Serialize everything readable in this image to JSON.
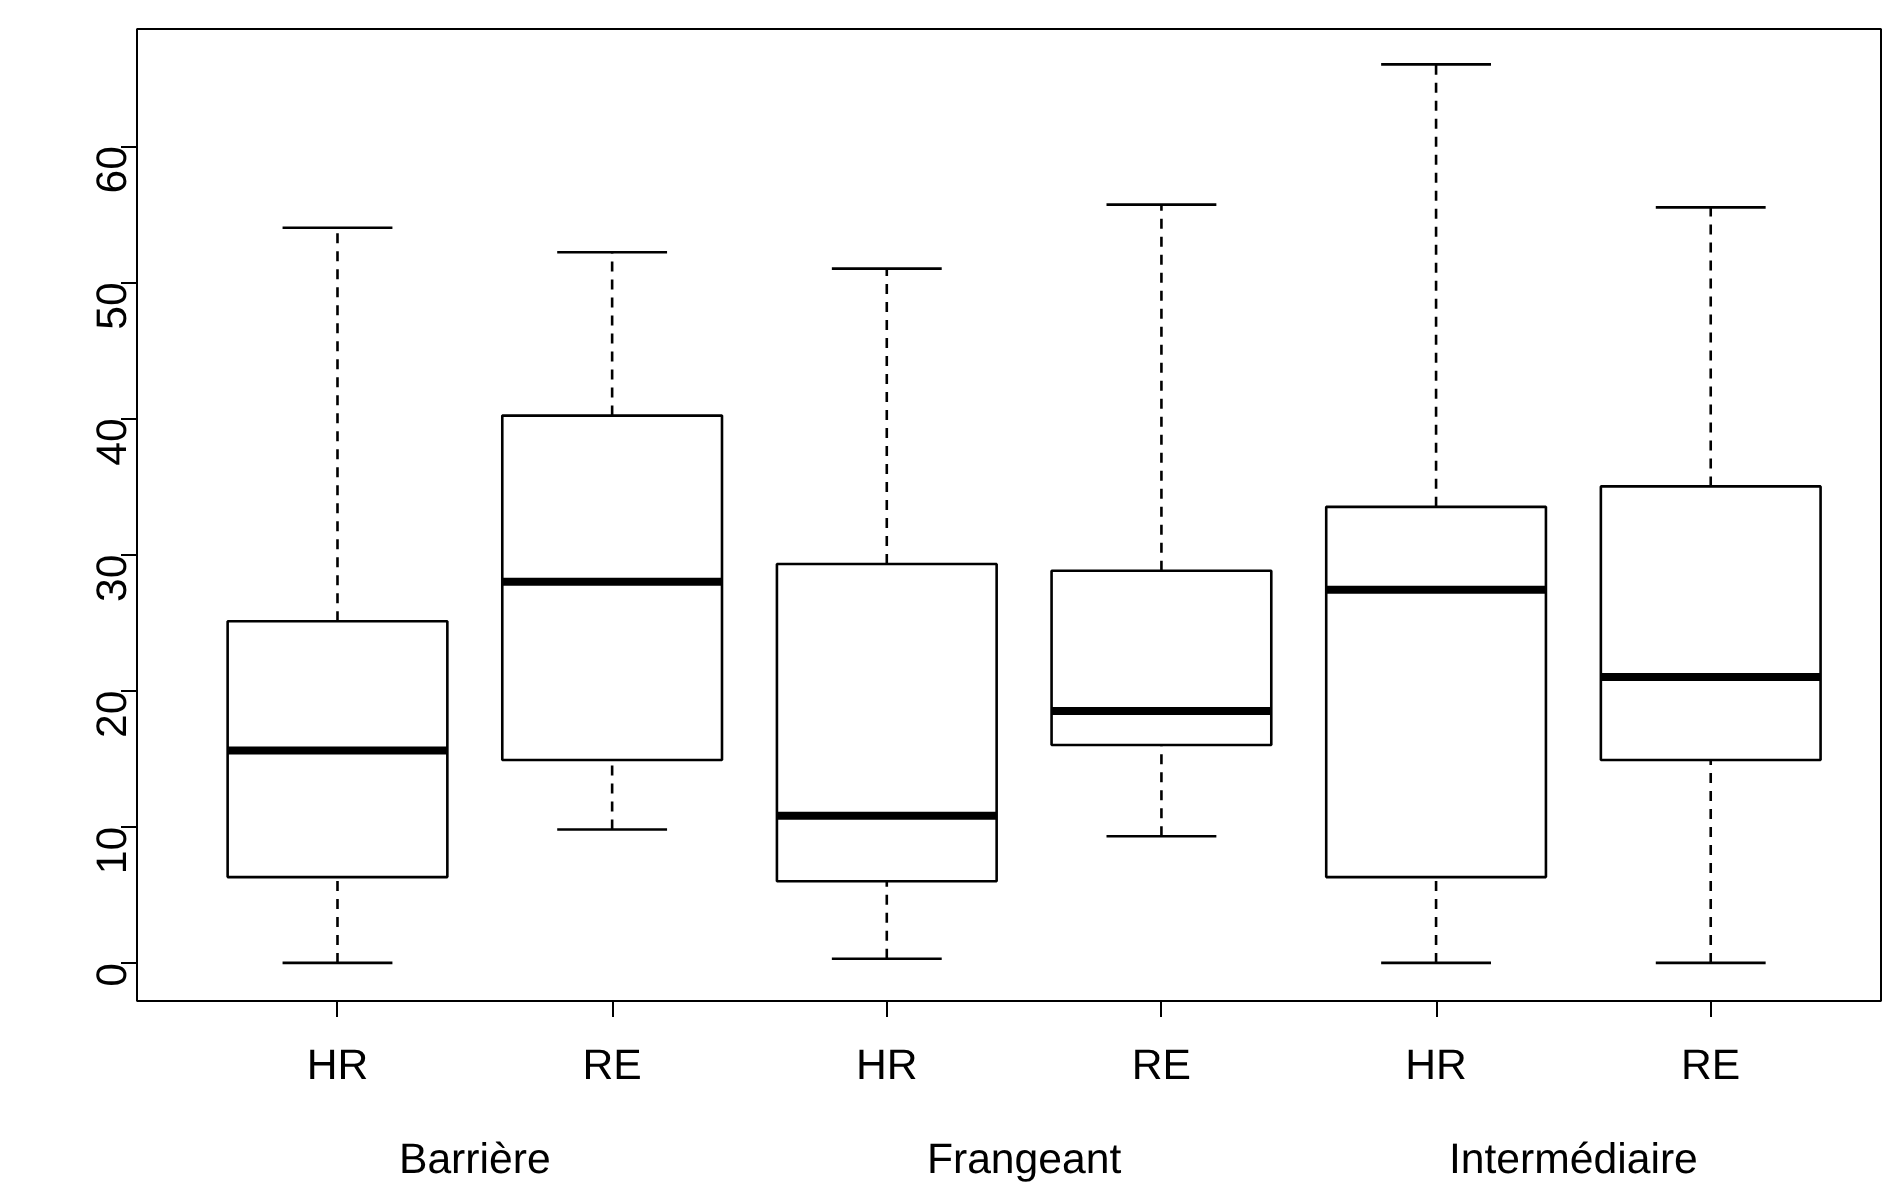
{
  "chart_data": {
    "type": "box",
    "categories": [
      "HR",
      "RE",
      "HR",
      "RE",
      "HR",
      "RE"
    ],
    "boxes": [
      {
        "low": 0,
        "q1": 6.3,
        "median": 15.6,
        "q3": 25.1,
        "high": 54.0
      },
      {
        "low": 9.8,
        "q1": 14.9,
        "median": 28.0,
        "q3": 40.2,
        "high": 52.2
      },
      {
        "low": 0.3,
        "q1": 6.0,
        "median": 10.8,
        "q3": 29.3,
        "high": 51.0
      },
      {
        "low": 9.3,
        "q1": 16.0,
        "median": 18.5,
        "q3": 28.8,
        "high": 55.7
      },
      {
        "low": 0,
        "q1": 6.3,
        "median": 27.4,
        "q3": 33.5,
        "high": 66.0
      },
      {
        "low": 0,
        "q1": 14.9,
        "median": 21.0,
        "q3": 35.0,
        "high": 55.5
      }
    ],
    "annotations": [
      "Barrière",
      "Frangeant",
      "Intermédiaire"
    ],
    "ylim": [
      -2.8,
      68.6
    ],
    "yticks": [
      0,
      10,
      20,
      30,
      40,
      50,
      60
    ],
    "grid": false
  }
}
